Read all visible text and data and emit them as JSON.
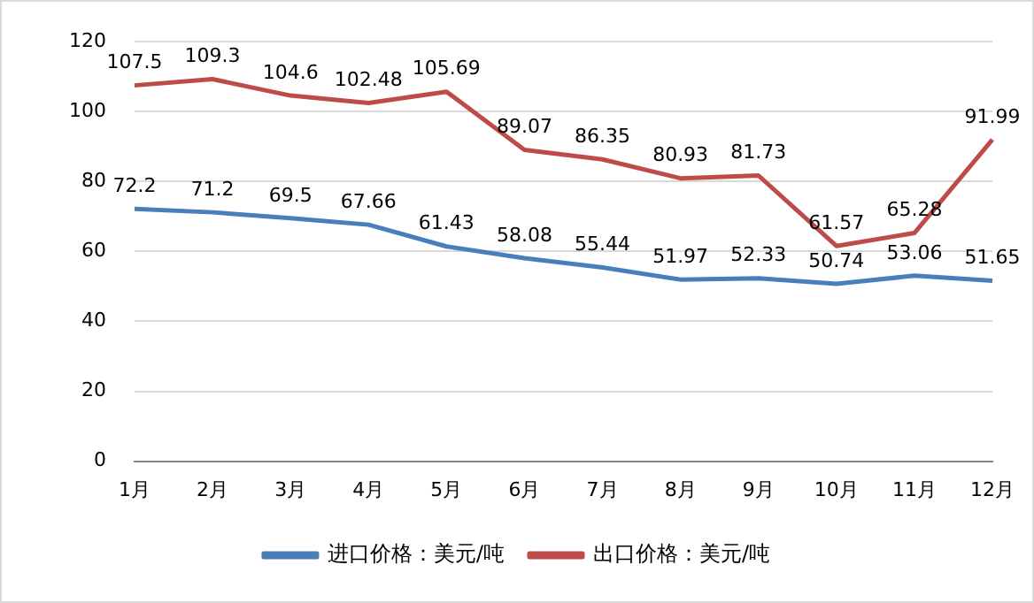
{
  "chart_data": {
    "type": "line",
    "categories": [
      "1月",
      "2月",
      "3月",
      "4月",
      "5月",
      "6月",
      "7月",
      "8月",
      "9月",
      "10月",
      "11月",
      "12月"
    ],
    "series": [
      {
        "name": "进口价格：美元/吨",
        "color": "#4a7ebb",
        "values": [
          72.2,
          71.2,
          69.5,
          67.66,
          61.43,
          58.08,
          55.44,
          51.97,
          52.33,
          50.74,
          53.06,
          51.65
        ]
      },
      {
        "name": "出口价格：美元/吨",
        "color": "#be4b48",
        "values": [
          107.5,
          109.3,
          104.6,
          102.48,
          105.69,
          89.07,
          86.35,
          80.93,
          81.73,
          61.57,
          65.28,
          91.99
        ]
      }
    ],
    "ylim": [
      0,
      120
    ],
    "yticks": [
      0,
      20,
      40,
      60,
      80,
      100,
      120
    ],
    "grid": "y",
    "legend": "bottom",
    "data_labels": true,
    "marker": "none",
    "line_style": "solid"
  }
}
